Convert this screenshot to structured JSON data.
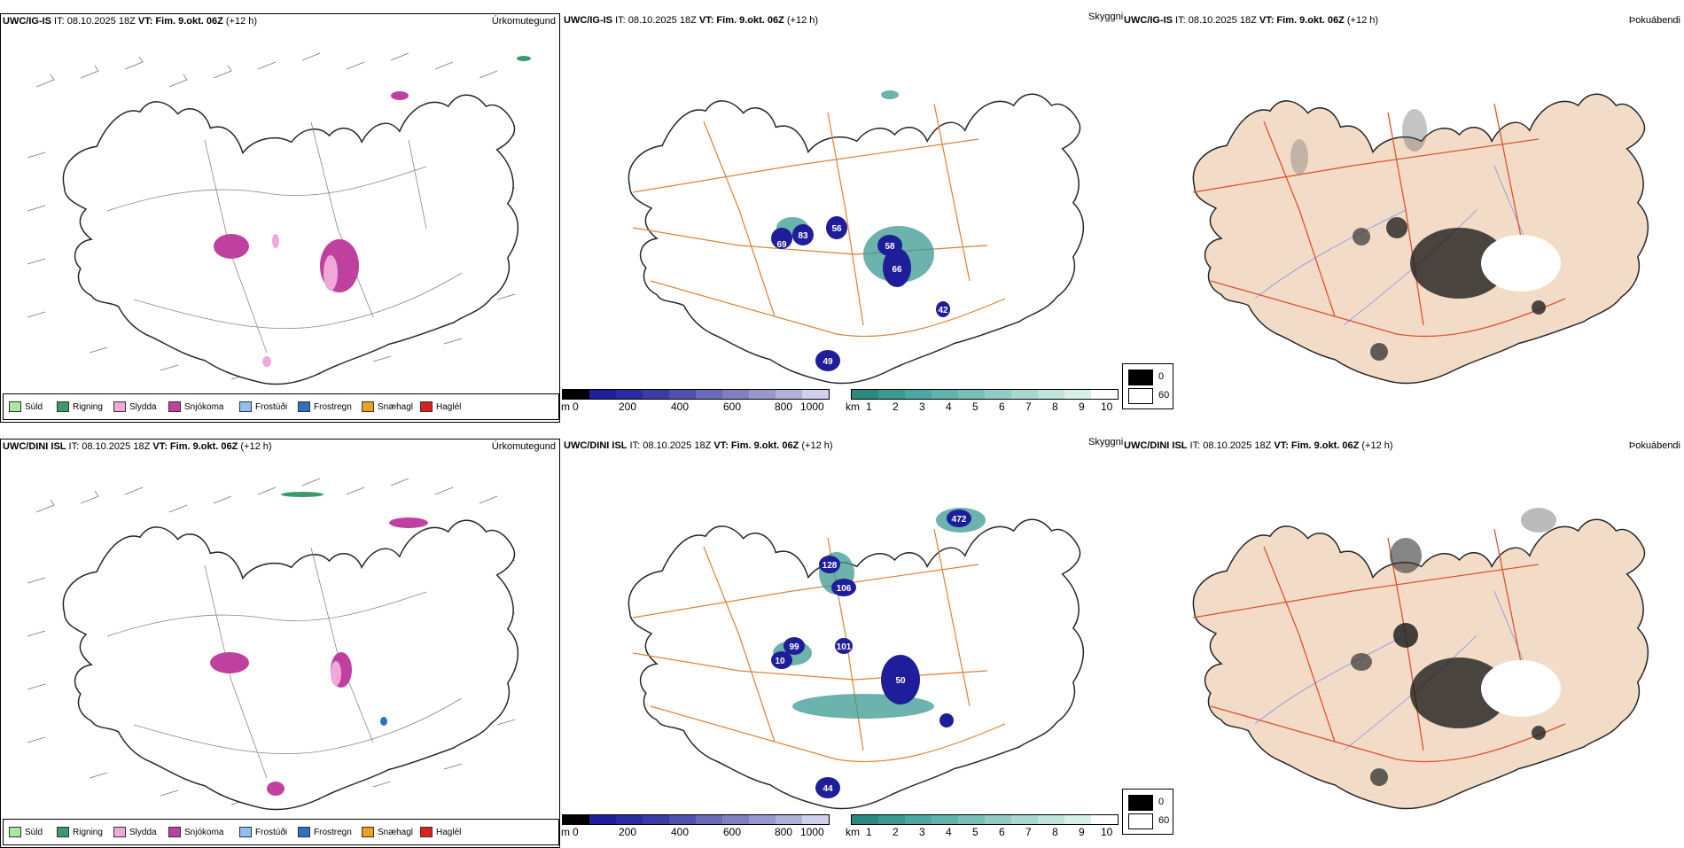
{
  "rows": [
    {
      "precip": {
        "header_model": "UWC/IG-IS",
        "header_it": " IT: 08.10.2025 18Z ",
        "header_vt": "VT: Fim. 9.okt. 06Z",
        "header_lead": " (+12 h)",
        "variable": "Úrkomutegund"
      },
      "visibility": {
        "header_model": "UWC/IG-IS",
        "header_it": " IT: 08.10.2025 18Z ",
        "header_vt": "VT: Fim. 9.okt. 06Z",
        "header_lead": " (+12 h)",
        "variable": "Skyggni",
        "labels": [
          "56",
          "83",
          "69",
          "58",
          "66",
          "49",
          "42"
        ]
      },
      "fog": {
        "header_model": "UWC/IG-IS",
        "header_it": " IT: 08.10.2025 18Z ",
        "header_vt": "VT: Fim. 9.okt. 06Z",
        "header_lead": " (+12 h)",
        "variable": "Þokuábendi"
      }
    },
    {
      "precip": {
        "header_model": "UWC/DINI ISL",
        "header_it": " IT: 08.10.2025 18Z ",
        "header_vt": "VT: Fim. 9.okt. 06Z",
        "header_lead": " (+12 h)",
        "variable": "Úrkomutegund"
      },
      "visibility": {
        "header_model": "UWC/DINI ISL",
        "header_it": " IT: 08.10.2025 18Z ",
        "header_vt": "VT: Fim. 9.okt. 06Z",
        "header_lead": " (+12 h)",
        "variable": "Skyggni",
        "labels": [
          "472",
          "128",
          "106",
          "101",
          "99",
          "10",
          "50",
          "44"
        ]
      },
      "fog": {
        "header_model": "UWC/DINI ISL",
        "header_it": " IT: 08.10.2025 18Z ",
        "header_vt": "VT: Fim. 9.okt. 06Z",
        "header_lead": " (+12 h)",
        "variable": "Þokuábendi"
      }
    }
  ],
  "precip_legend": [
    {
      "label": "Súld",
      "color": "#a8e8a0"
    },
    {
      "label": "Rigning",
      "color": "#3a9a6a"
    },
    {
      "label": "Slydda",
      "color": "#f0a8d8"
    },
    {
      "label": "Snjókoma",
      "color": "#c040a0"
    },
    {
      "label": "Frostúði",
      "color": "#90c0f0"
    },
    {
      "label": "Frostregn",
      "color": "#3070c0"
    },
    {
      "label": "Snæhagl",
      "color": "#f0a020"
    },
    {
      "label": "Haglél",
      "color": "#e02020"
    }
  ],
  "ceiling_scale": {
    "unit": "m",
    "ticks": [
      "0",
      "200",
      "400",
      "600",
      "800",
      "1000"
    ]
  },
  "vis_scale": {
    "unit": "km",
    "ticks": [
      "1",
      "2",
      "3",
      "4",
      "5",
      "6",
      "7",
      "8",
      "9",
      "10"
    ]
  },
  "fog_scale": [
    "0",
    "60"
  ],
  "colors": {
    "road": "#e08030",
    "land_fog": "#f2dcc8",
    "ceiling": "#1e1e9a",
    "teal": "#3a9a90",
    "snow": "#c040a0"
  }
}
